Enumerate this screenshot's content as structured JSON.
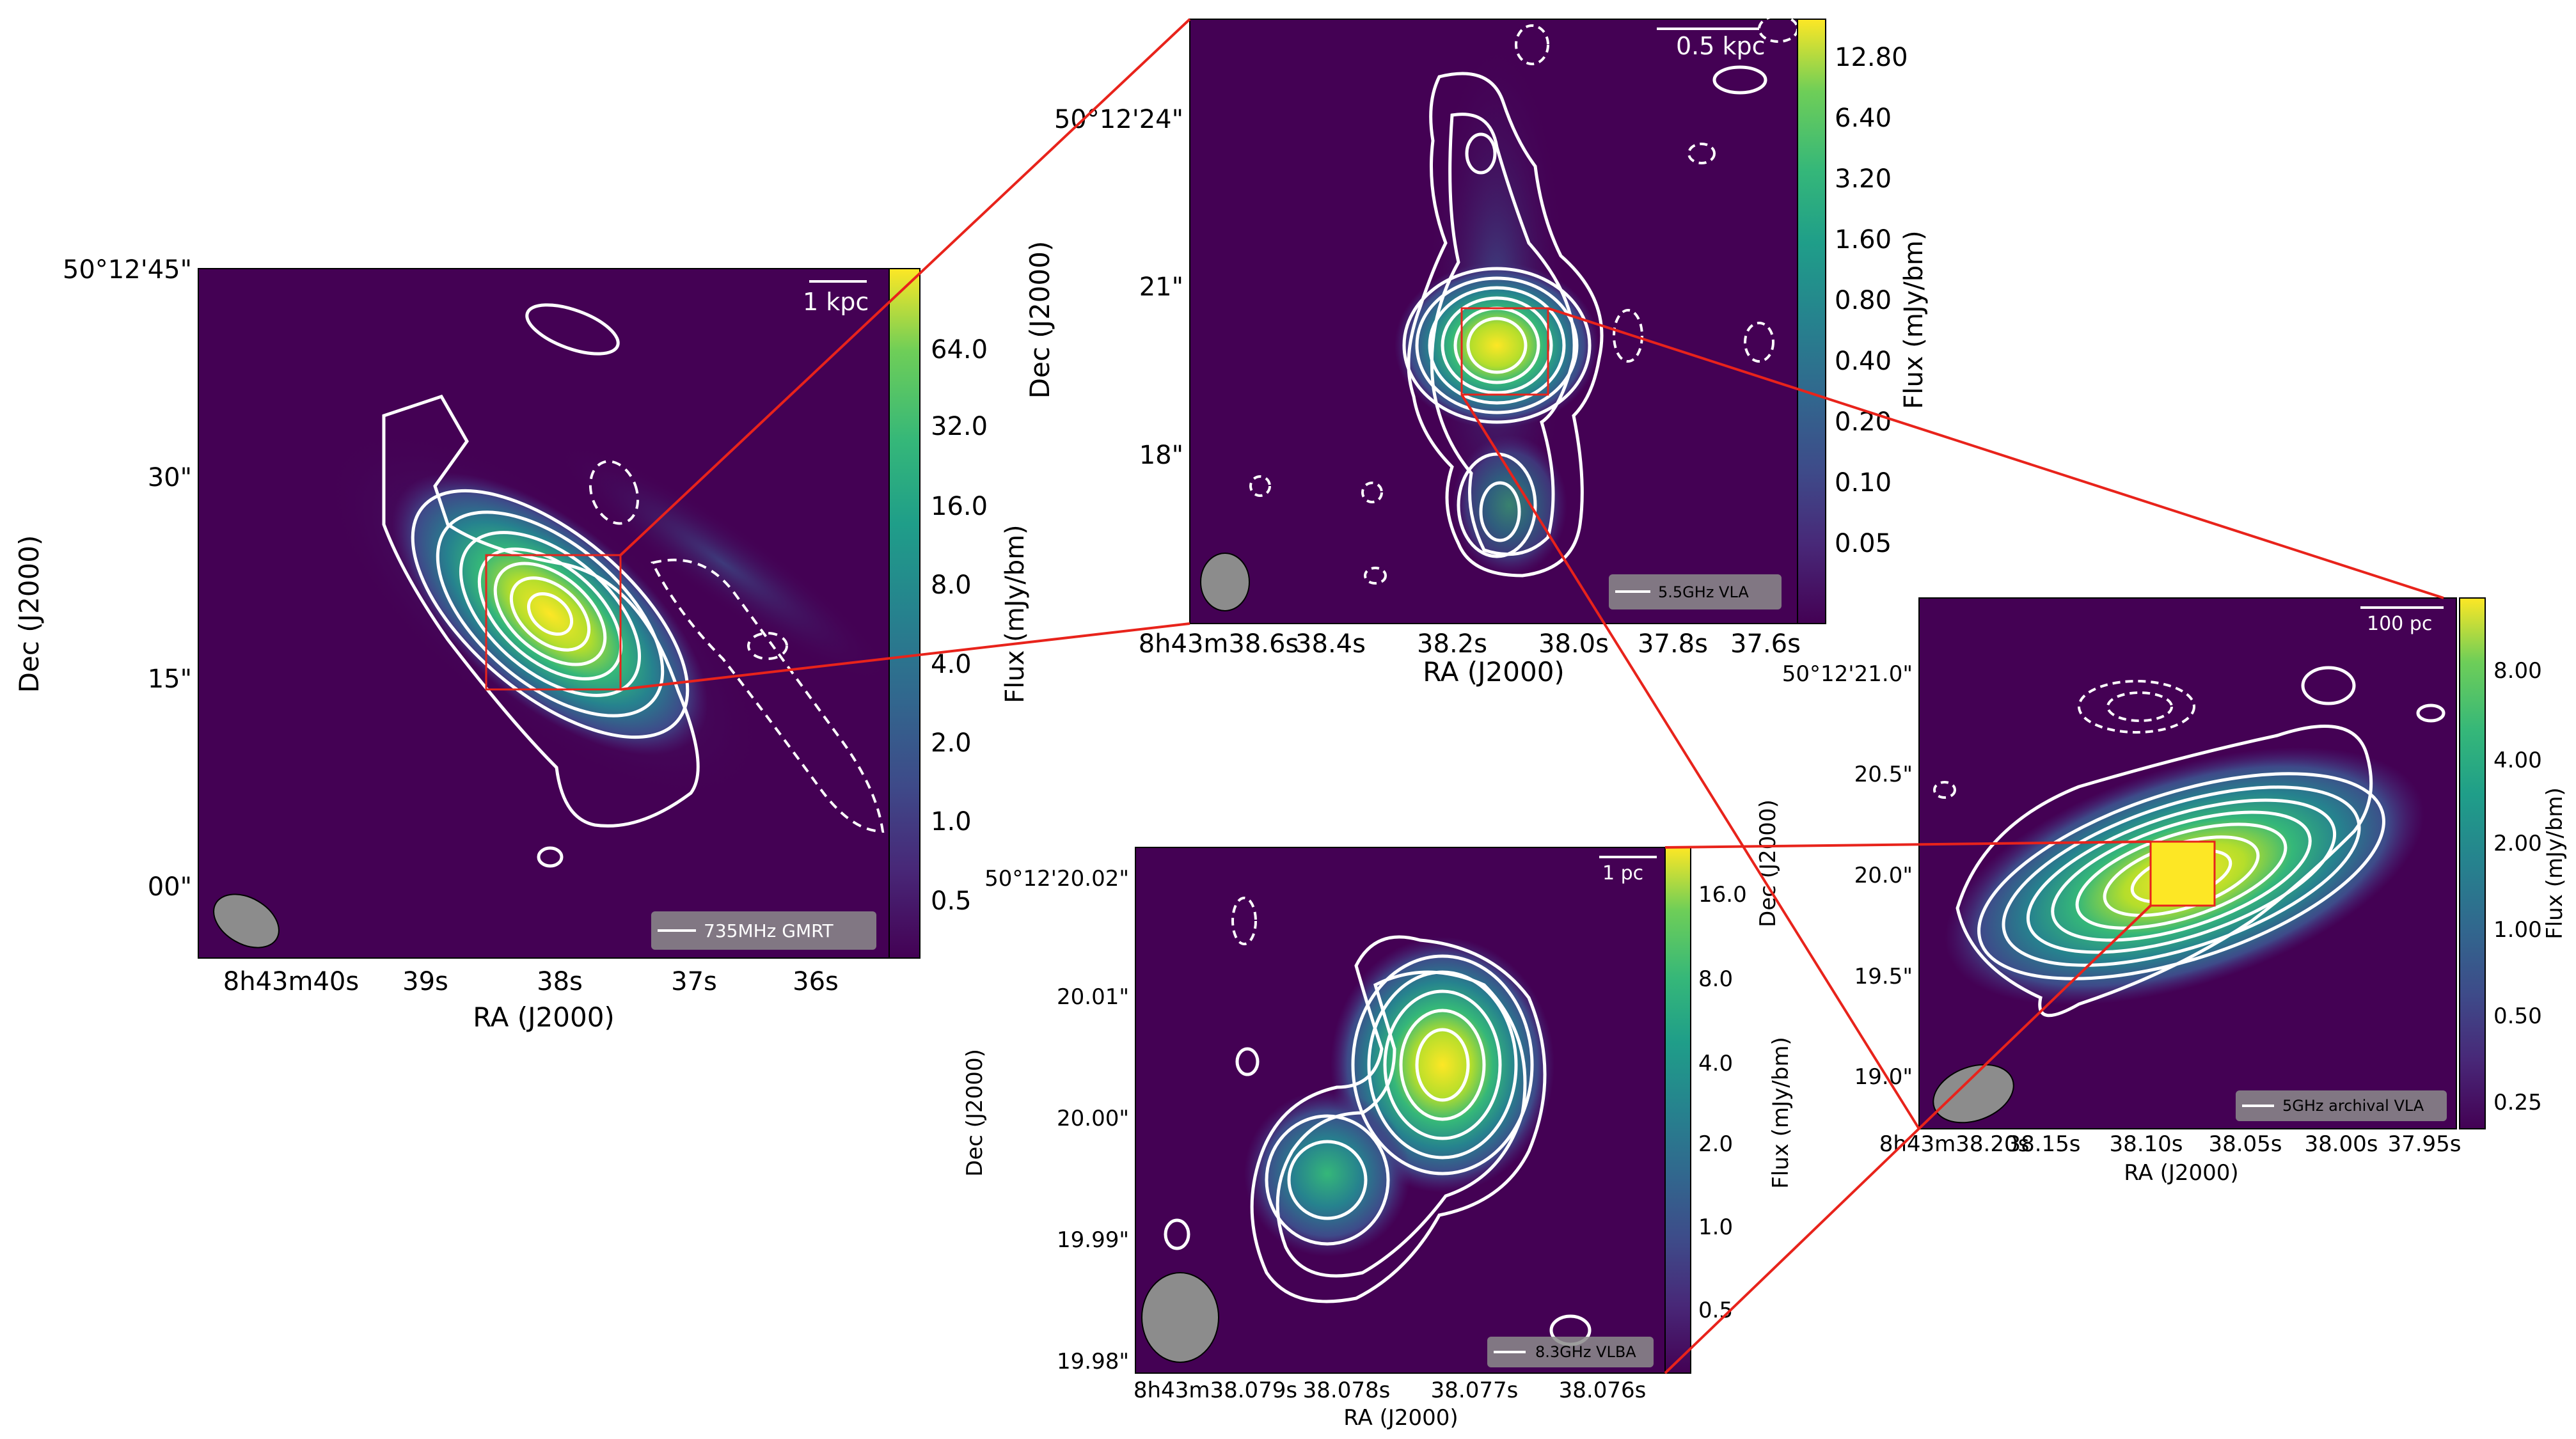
{
  "panels": {
    "gmrt": {
      "legend": "735MHz GMRT",
      "scale_bar": "1 kpc",
      "xlabel": "RA (J2000)",
      "ylabel": "Dec (J2000)",
      "cb_label": "Flux (mJy/bm)",
      "x_ticks": [
        "8h43m40s",
        "39s",
        "38s",
        "37s",
        "36s"
      ],
      "y_ticks": [
        "50°12'45\"",
        "30\"",
        "15\"",
        "00\""
      ],
      "cb_ticks": [
        "64.0",
        "32.0",
        "16.0",
        "8.0",
        "4.0",
        "2.0",
        "1.0",
        "0.5"
      ]
    },
    "vla55": {
      "legend": "5.5GHz VLA",
      "scale_bar": "0.5 kpc",
      "xlabel": "RA (J2000)",
      "ylabel": "Dec (J2000)",
      "cb_label": "Flux (mJy/bm)",
      "x_ticks": [
        "8h43m38.6s",
        "38.4s",
        "38.2s",
        "38.0s",
        "37.8s",
        "37.6s"
      ],
      "y_ticks": [
        "50°12'24\"",
        "21\"",
        "18\""
      ],
      "cb_ticks": [
        "12.80",
        "6.40",
        "3.20",
        "1.60",
        "0.80",
        "0.40",
        "0.20",
        "0.10",
        "0.05"
      ]
    },
    "vlba": {
      "legend": "8.3GHz VLBA",
      "scale_bar": "1 pc",
      "xlabel": "RA (J2000)",
      "ylabel": "Dec (J2000)",
      "cb_label": "Flux (mJy/bm)",
      "x_ticks": [
        "8h43m38.079s",
        "38.078s",
        "38.077s",
        "38.076s"
      ],
      "y_ticks": [
        "50°12'20.02\"",
        "20.01\"",
        "20.00\"",
        "19.99\"",
        "19.98\""
      ],
      "cb_ticks": [
        "16.0",
        "8.0",
        "4.0",
        "2.0",
        "1.0",
        "0.5"
      ]
    },
    "vla5": {
      "legend": "5GHz archival VLA",
      "scale_bar": "100 pc",
      "xlabel": "RA (J2000)",
      "ylabel": "Dec (J2000)",
      "cb_label": "Flux (mJy/bm)",
      "x_ticks": [
        "8h43m38.20s",
        "38.15s",
        "38.10s",
        "38.05s",
        "38.00s",
        "37.95s"
      ],
      "y_ticks": [
        "50°12'21.0\"",
        "20.5\"",
        "20.0\"",
        "19.5\"",
        "19.0\""
      ],
      "cb_ticks": [
        "8.00",
        "4.00",
        "2.00",
        "1.00",
        "0.50",
        "0.25"
      ]
    }
  },
  "colors": {
    "background": "#440154",
    "contour": "#ffffff",
    "zoom_lines": "#e8231b",
    "beam": "#8c8c8c"
  }
}
